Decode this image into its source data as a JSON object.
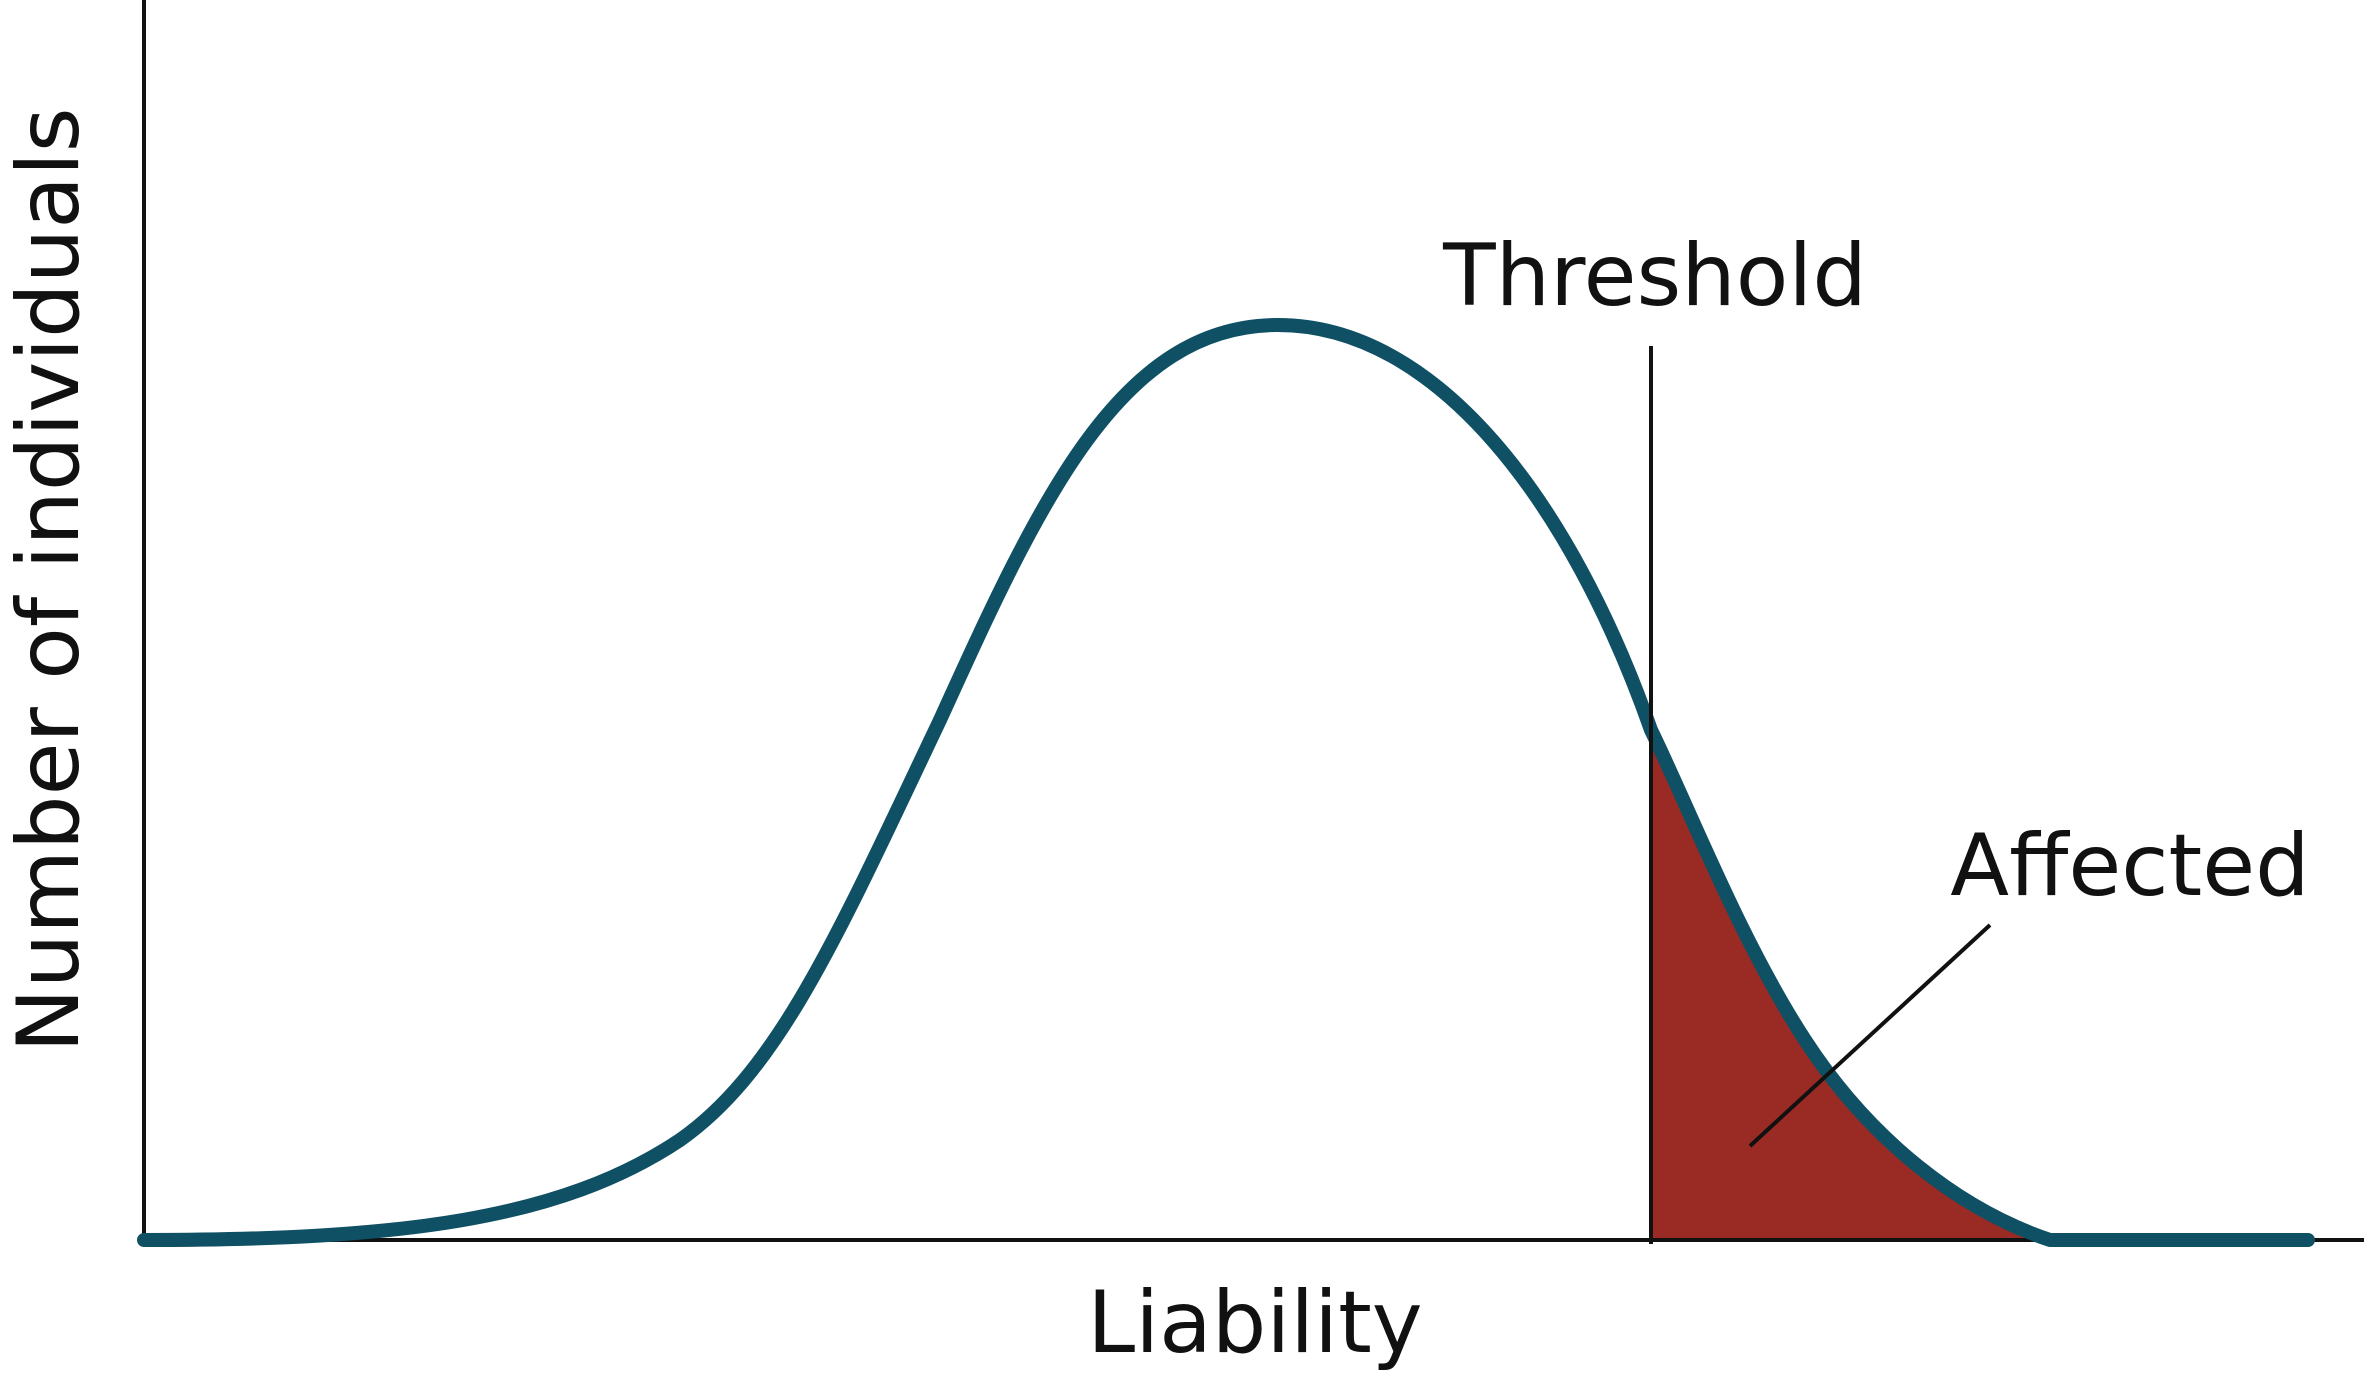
{
  "diagram": {
    "y_axis_label": "Number of individuals",
    "x_axis_label": "Liability",
    "threshold_label": "Threshold",
    "affected_label": "Affected"
  },
  "colors": {
    "curve": "#0f5064",
    "affected_fill": "#9a2a24",
    "axis": "#111111"
  }
}
